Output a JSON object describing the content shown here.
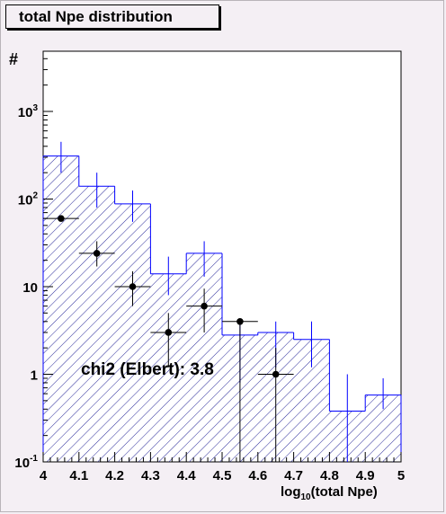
{
  "chart_data": {
    "type": "histogram",
    "title": "total Npe distribution",
    "xlabel_main": "log",
    "xlabel_sub": "10",
    "xlabel_rest": "(total Npe)",
    "ylabel": "#",
    "yscale": "log",
    "xlim": [
      4.0,
      5.0
    ],
    "ylim": [
      0.1,
      5000
    ],
    "x_ticks": [
      "4",
      "4.1",
      "4.2",
      "4.3",
      "4.4",
      "4.5",
      "4.6",
      "4.7",
      "4.8",
      "4.9",
      "5"
    ],
    "y_ticks": [
      {
        "base": "10",
        "exp": "-1",
        "value": 0.1
      },
      {
        "base": "1",
        "exp": "",
        "value": 1
      },
      {
        "base": "10",
        "exp": "",
        "value": 10
      },
      {
        "base": "10",
        "exp": "2",
        "value": 100
      },
      {
        "base": "10",
        "exp": "3",
        "value": 1000
      }
    ],
    "annotation": "chi2 (Elbert): 3.8",
    "histogram": {
      "bin_edges": [
        4.0,
        4.1,
        4.2,
        4.3,
        4.4,
        4.5,
        4.6,
        4.7,
        4.8,
        4.9,
        5.0
      ],
      "values": [
        310,
        140,
        88,
        14,
        24,
        2.8,
        3,
        2.5,
        0.38,
        0.58
      ],
      "err_low": [
        200,
        80,
        55,
        8,
        13,
        0.8,
        1.2,
        1.2,
        0.1,
        0.4
      ],
      "err_high": [
        450,
        200,
        125,
        22,
        33,
        4.0,
        4.0,
        4.0,
        1.0,
        0.9
      ],
      "color": "#0000ff"
    },
    "points": {
      "x": [
        4.05,
        4.15,
        4.25,
        4.35,
        4.45,
        4.55,
        4.65
      ],
      "y": [
        60,
        24,
        10,
        3,
        6,
        4,
        1
      ],
      "err_low": [
        60,
        17,
        6,
        1.2,
        3,
        0.1,
        0.1
      ],
      "err_high": [
        60,
        33,
        15,
        5,
        9.5,
        4,
        2
      ],
      "xerr": 0.05,
      "color": "#000000"
    }
  },
  "colors": {
    "background": "#f4eff4",
    "hist": "#0000ff",
    "points": "#000000"
  }
}
